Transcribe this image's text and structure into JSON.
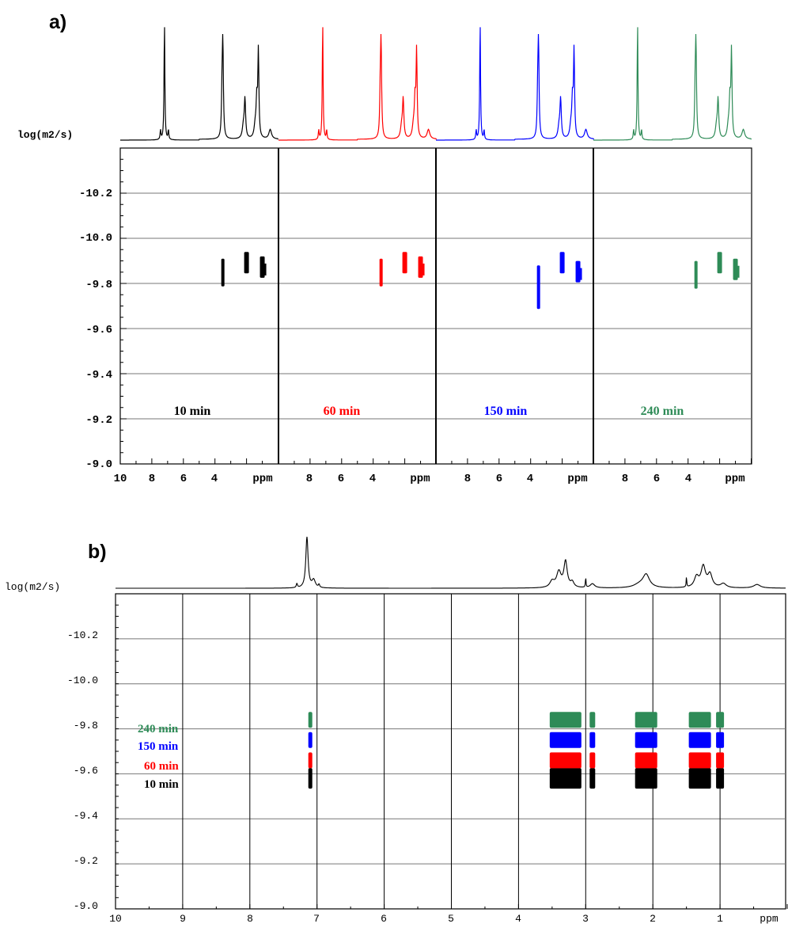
{
  "panel_a": {
    "label": "a)",
    "ylabel": "log(m2/s)",
    "y_tick_labels": [
      "-10.2",
      "-10.0",
      "-9.8",
      "-9.6",
      "-9.4",
      "-9.2",
      "-9.0"
    ],
    "x_tick_labels_first": [
      "10",
      "8",
      "6",
      "4",
      "ppm"
    ],
    "x_tick_labels_rest": [
      "8",
      "6",
      "4",
      "ppm"
    ],
    "colors": [
      "#000000",
      "#ff0000",
      "#0000ff",
      "#2e8b57"
    ],
    "time_labels": [
      "10 min",
      "60 min",
      "150 min",
      "240 min"
    ]
  },
  "panel_b": {
    "label": "b)",
    "ylabel": "log(m2/s)",
    "y_tick_labels": [
      "-10.2",
      "-10.0",
      "-9.8",
      "-9.6",
      "-9.4",
      "-9.2",
      "-9.0"
    ],
    "x_tick_labels": [
      "10",
      "9",
      "8",
      "7",
      "6",
      "5",
      "4",
      "3",
      "2",
      "1",
      "ppm"
    ],
    "colors": [
      "#2e8b57",
      "#0000ff",
      "#ff0000",
      "#000000"
    ],
    "time_labels": [
      "240 min",
      "150 min",
      "60 min",
      "10 min"
    ]
  },
  "chart_data": [
    {
      "type": "scatter",
      "title": "",
      "xlabel": "ppm",
      "ylabel": "log(m2/s)",
      "xlim": [
        10,
        0
      ],
      "ylim": [
        -10.4,
        -9.0
      ],
      "grid": true,
      "series": [
        {
          "name": "10 min",
          "color": "#000000",
          "x": [
            3.5,
            2.0,
            1.0
          ],
          "y": [
            -9.85,
            -9.88,
            -9.86
          ]
        },
        {
          "name": "60 min",
          "color": "#ff0000",
          "x": [
            3.5,
            2.0,
            1.0
          ],
          "y": [
            -9.85,
            -9.88,
            -9.86
          ]
        },
        {
          "name": "150 min",
          "color": "#0000ff",
          "x": [
            3.5,
            2.0,
            1.0
          ],
          "y": [
            -9.82,
            -9.88,
            -9.84
          ]
        },
        {
          "name": "240 min",
          "color": "#2e8b57",
          "x": [
            3.5,
            2.0,
            1.0
          ],
          "y": [
            -9.84,
            -9.88,
            -9.85
          ]
        }
      ]
    },
    {
      "type": "scatter",
      "title": "",
      "xlabel": "ppm",
      "ylabel": "log(m2/s)",
      "xlim": [
        10,
        0
      ],
      "ylim": [
        -10.4,
        -9.0
      ],
      "grid": true,
      "series": [
        {
          "name": "240 min",
          "color": "#2e8b57",
          "x": [
            7.1,
            3.3,
            2.9,
            2.1,
            1.3,
            1.0
          ],
          "y": [
            -9.84,
            -9.84,
            -9.84,
            -9.84,
            -9.84,
            -9.84
          ]
        },
        {
          "name": "150 min",
          "color": "#0000ff",
          "x": [
            7.1,
            3.3,
            2.9,
            2.1,
            1.3,
            1.0
          ],
          "y": [
            -9.75,
            -9.75,
            -9.75,
            -9.75,
            -9.75,
            -9.75
          ]
        },
        {
          "name": "60 min",
          "color": "#ff0000",
          "x": [
            7.1,
            3.3,
            2.9,
            2.1,
            1.3,
            1.0
          ],
          "y": [
            -9.66,
            -9.66,
            -9.66,
            -9.66,
            -9.66,
            -9.66
          ]
        },
        {
          "name": "10 min",
          "color": "#000000",
          "x": [
            7.1,
            3.3,
            2.9,
            2.1,
            1.3,
            1.0
          ],
          "y": [
            -9.58,
            -9.58,
            -9.58,
            -9.58,
            -9.58,
            -9.58
          ]
        }
      ]
    }
  ]
}
